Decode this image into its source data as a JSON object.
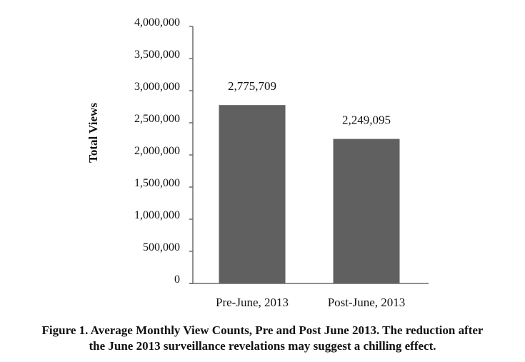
{
  "chart_data": {
    "type": "bar",
    "categories": [
      "Pre-June, 2013",
      "Post-June, 2013"
    ],
    "values": [
      2775709,
      2249095
    ],
    "data_labels": [
      "2,775,709",
      "2,249,095"
    ],
    "ylabel": "Total Views",
    "xlabel": "",
    "ylim": [
      0,
      4000000
    ],
    "yticks": [
      0,
      500000,
      1000000,
      1500000,
      2000000,
      2500000,
      3000000,
      3500000,
      4000000
    ],
    "ytick_labels": [
      "0",
      "500,000",
      "1,000,000",
      "1,500,000",
      "2,000,000",
      "2,500,000",
      "3,000,000",
      "3,500,000",
      "4,000,000"
    ],
    "grid": false,
    "legend": "none",
    "bar_color": "#606060",
    "axis_color": "#6b6b6b"
  },
  "caption": {
    "line1": "Figure 1. Average Monthly View Counts, Pre and Post June 2013. The reduction after",
    "line2": "the June 2013 surveillance revelations may suggest a chilling effect."
  }
}
